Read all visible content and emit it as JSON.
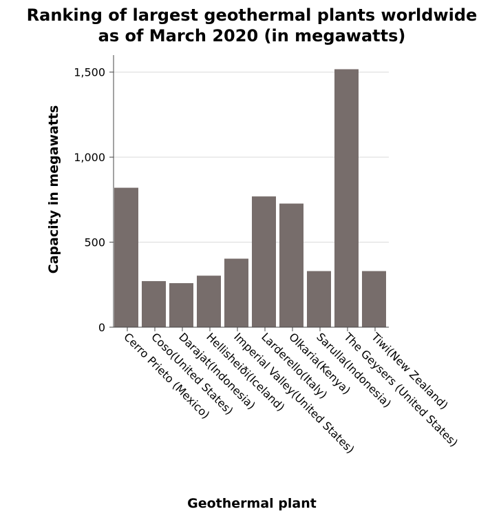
{
  "chart_data": {
    "type": "bar",
    "title": [
      "Ranking of largest geothermal plants worldwide",
      "as of March 2020 (in megawatts)"
    ],
    "xlabel": "Geothermal plant",
    "ylabel": "Capacity in megawatts",
    "ylim": [
      0,
      1600
    ],
    "yticks": [
      0,
      500,
      1000,
      1500
    ],
    "ytick_labels": [
      "0",
      "500",
      "1,000",
      "1,500"
    ],
    "grid": true,
    "bar_color": "#776d6b",
    "categories": [
      "Cerro Prieto (Mexico)",
      "Coso(United States)",
      "Darajat(Indonesia)",
      "Hellisheiði(Iceland)",
      "Imperial Valley(United States)",
      "Larderello(Italy)",
      "Olkaria(Kenya)",
      "Sarulla(Indonesia)",
      "The Geysers (United States)",
      "Tiwi(New Zealand)"
    ],
    "values": [
      820,
      271,
      259,
      303,
      403,
      769,
      727,
      330,
      1517,
      330
    ]
  }
}
